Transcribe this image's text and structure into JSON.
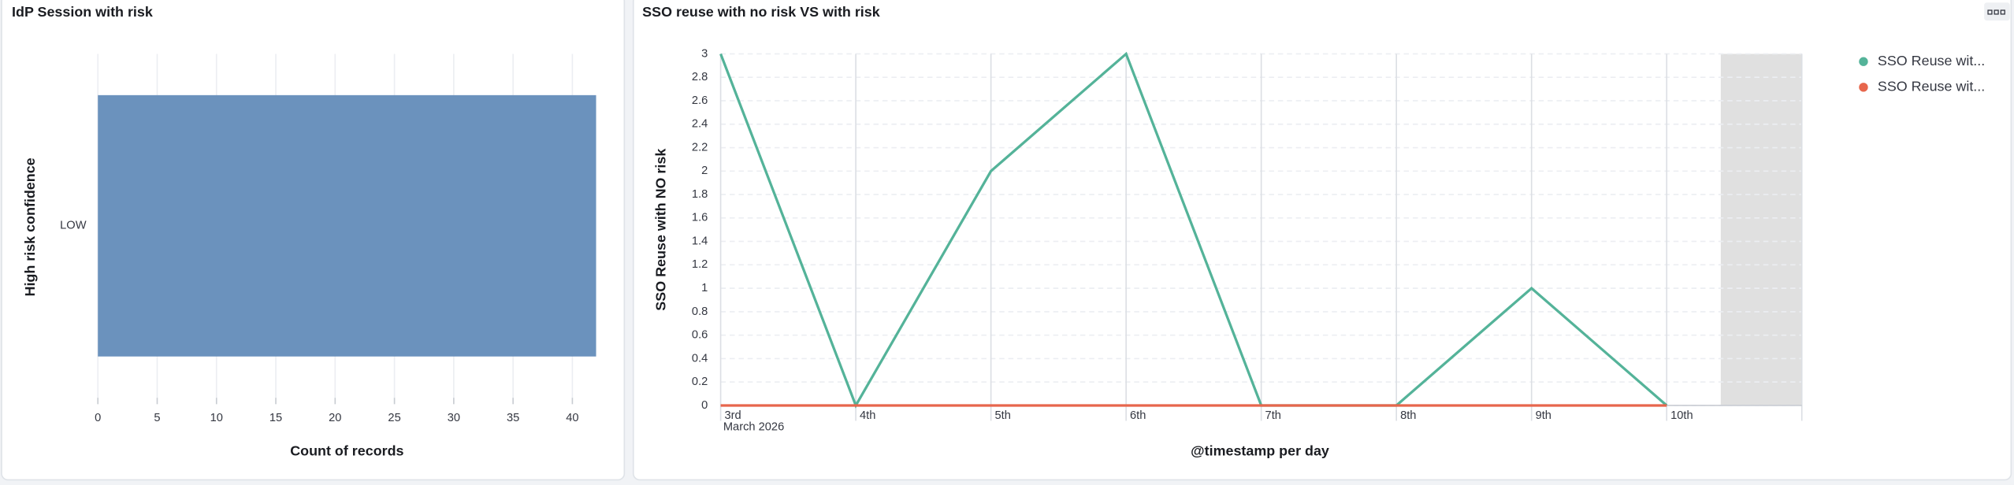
{
  "chart_data": [
    {
      "type": "hbar",
      "title": "IdP Session with risk",
      "x_label": "Count of records",
      "y_label": "High risk confidence",
      "categories": [
        "LOW"
      ],
      "values": [
        42
      ],
      "color": "#6b92bd",
      "xlim": [
        0,
        42
      ],
      "xticks": [
        0,
        5,
        10,
        15,
        20,
        25,
        30,
        35,
        40
      ],
      "grid": true
    },
    {
      "type": "line",
      "title": "SSO reuse with no risk VS with risk",
      "x_label": "@timestamp per day",
      "y_label": "SSO Reuse with NO risk",
      "categories": [
        "3rd",
        "4th",
        "5th",
        "6th",
        "7th",
        "8th",
        "9th",
        "10th"
      ],
      "x_period": "March 2026",
      "series": [
        {
          "name": "SSO Reuse wit...",
          "color": "#54b399",
          "values": [
            3,
            0,
            2,
            3,
            0,
            0,
            1,
            0
          ]
        },
        {
          "name": "SSO Reuse wit...",
          "color": "#e7664c",
          "values": [
            0,
            0,
            0,
            0,
            0,
            0,
            0,
            0
          ]
        }
      ],
      "ylim": [
        0,
        3
      ],
      "yticks": [
        0,
        0.2,
        0.4,
        0.6,
        0.8,
        1,
        1.2,
        1.4,
        1.6,
        1.8,
        2,
        2.2,
        2.4,
        2.6,
        2.8,
        3
      ],
      "grid": true,
      "legend": "right"
    }
  ]
}
